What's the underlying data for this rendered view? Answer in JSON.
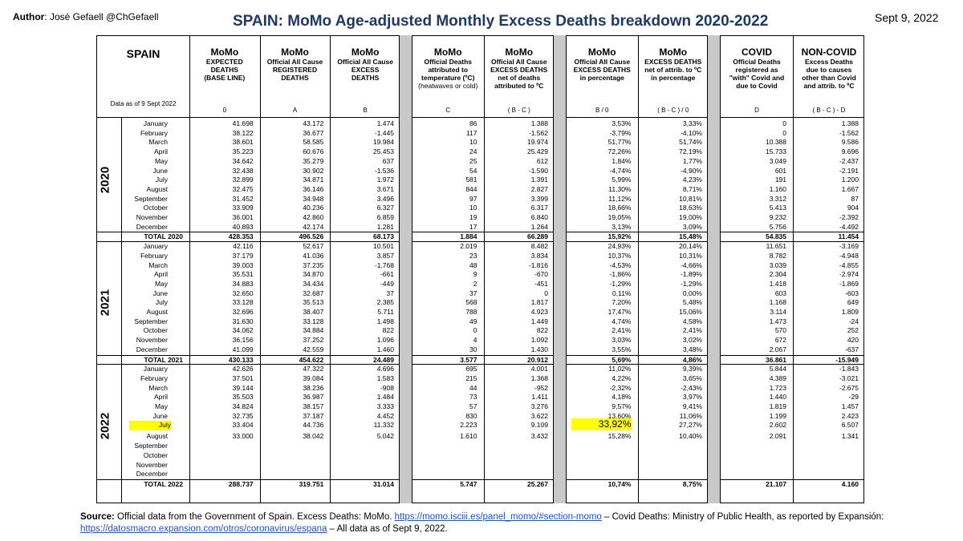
{
  "author_label": "Author",
  "author_text": ": José Gefaell   @ChGefaell",
  "title": "SPAIN: MoMo Age-adjusted Monthly Excess Deaths breakdown 2020-2022",
  "date": "Sept 9, 2022",
  "header": {
    "country": "SPAIN",
    "data_as_of": "Data as of 9 Sept 2022",
    "columns": [
      {
        "h1": "MoMo",
        "h2": [
          "EXPECTED",
          "DEATHS",
          "(BASE LINE)"
        ],
        "code": "0"
      },
      {
        "h1": "MoMo",
        "h2": [
          "Official All Cause",
          "REGISTERED",
          "DEATHS"
        ],
        "code": "A"
      },
      {
        "h1": "MoMo",
        "h2": [
          "Official All Cause",
          "EXCESS",
          "DEATHS"
        ],
        "code": "B"
      },
      {
        "h1": "MoMo",
        "h2": [
          "Official Deaths",
          "attributed to",
          "temperature (ºC)",
          "(heatwaves or cold)"
        ],
        "code": "C"
      },
      {
        "h1": "MoMo",
        "h2": [
          "Official All Cause",
          "EXCESS DEATHS",
          "net of deaths",
          "attributed to ºC"
        ],
        "code": "( B - C )"
      },
      {
        "h1": "MoMo",
        "h2": [
          "Official All Cause",
          "EXCESS DEATHS",
          "in percentage"
        ],
        "code": "B / 0"
      },
      {
        "h1": "MoMo",
        "h2": [
          "EXCESS DEATHS",
          "net of attrib. to ºC",
          "in percentage"
        ],
        "code": "( B - C ) / 0"
      },
      {
        "h1": "COVID",
        "h2": [
          "Official Deaths",
          "registered as",
          "\"with\" Covid and",
          "due to Covid"
        ],
        "code": "D"
      },
      {
        "h1": "NON-COVID",
        "h2": [
          "Excess Deaths",
          "due to causes",
          "other than Covid",
          "and attrib. to ºC"
        ],
        "code": "( B - C ) - D"
      }
    ]
  },
  "years": [
    {
      "year": "2020",
      "rows": [
        [
          "January",
          "41.698",
          "43.172",
          "1.474",
          "86",
          "1.388",
          "3,53%",
          "3,33%",
          "0",
          "1.388"
        ],
        [
          "February",
          "38.122",
          "36.677",
          "-1.445",
          "117",
          "-1.562",
          "-3,79%",
          "-4,10%",
          "0",
          "-1.562"
        ],
        [
          "March",
          "38.601",
          "58.585",
          "19.984",
          "10",
          "19.974",
          "51,77%",
          "51,74%",
          "10.388",
          "9.586"
        ],
        [
          "April",
          "35.223",
          "60.676",
          "25.453",
          "24",
          "25.429",
          "72,26%",
          "72,19%",
          "15.733",
          "9.696"
        ],
        [
          "May",
          "34.642",
          "35.279",
          "637",
          "25",
          "612",
          "1,84%",
          "1,77%",
          "3.049",
          "-2.437"
        ],
        [
          "June",
          "32.438",
          "30.902",
          "-1.536",
          "54",
          "-1.590",
          "-4,74%",
          "-4,90%",
          "601",
          "-2.191"
        ],
        [
          "July",
          "32.899",
          "34.871",
          "1.972",
          "581",
          "1.391",
          "5,99%",
          "4,23%",
          "191",
          "1.200"
        ],
        [
          "August",
          "32.475",
          "36.146",
          "3.671",
          "844",
          "2.827",
          "11,30%",
          "8,71%",
          "1.160",
          "1.667"
        ],
        [
          "September",
          "31.452",
          "34.948",
          "3.496",
          "97",
          "3.399",
          "11,12%",
          "10,81%",
          "3.312",
          "87"
        ],
        [
          "October",
          "33.909",
          "40.236",
          "6.327",
          "10",
          "6.317",
          "18,66%",
          "18,63%",
          "5.413",
          "904"
        ],
        [
          "November",
          "36.001",
          "42.860",
          "6.859",
          "19",
          "6.840",
          "19,05%",
          "19,00%",
          "9.232",
          "-2.392"
        ],
        [
          "December",
          "40.893",
          "42.174",
          "1.281",
          "17",
          "1.264",
          "3,13%",
          "3,09%",
          "5.756",
          "-4.492"
        ]
      ],
      "total": [
        "TOTAL 2020",
        "428.353",
        "496.526",
        "68.173",
        "1.884",
        "66.289",
        "15,92%",
        "15,48%",
        "54.835",
        "11.454"
      ]
    },
    {
      "year": "2021",
      "rows": [
        [
          "January",
          "42.116",
          "52.617",
          "10.501",
          "2.019",
          "8.482",
          "24,93%",
          "20,14%",
          "11.651",
          "-3.169"
        ],
        [
          "February",
          "37.179",
          "41.036",
          "3.857",
          "23",
          "3.834",
          "10,37%",
          "10,31%",
          "8.782",
          "-4.948"
        ],
        [
          "March",
          "39.003",
          "37.235",
          "-1.768",
          "48",
          "-1.816",
          "-4,53%",
          "-4,66%",
          "3.039",
          "-4.855"
        ],
        [
          "April",
          "35.531",
          "34.870",
          "-661",
          "9",
          "-670",
          "-1,86%",
          "-1,89%",
          "2.304",
          "-2.974"
        ],
        [
          "May",
          "34.883",
          "34.434",
          "-449",
          "2",
          "-451",
          "-1,29%",
          "-1,29%",
          "1.418",
          "-1.869"
        ],
        [
          "June",
          "32.650",
          "32.687",
          "37",
          "37",
          "0",
          "0,11%",
          "0,00%",
          "603",
          "-603"
        ],
        [
          "July",
          "33.128",
          "35.513",
          "2.385",
          "568",
          "1.817",
          "7,20%",
          "5,48%",
          "1.168",
          "649"
        ],
        [
          "August",
          "32.696",
          "38.407",
          "5.711",
          "788",
          "4.923",
          "17,47%",
          "15,06%",
          "3.114",
          "1.809"
        ],
        [
          "September",
          "31.630",
          "33.128",
          "1.498",
          "49",
          "1.449",
          "4,74%",
          "4,58%",
          "1.473",
          "-24"
        ],
        [
          "October",
          "34.062",
          "34.884",
          "822",
          "0",
          "822",
          "2,41%",
          "2,41%",
          "570",
          "252"
        ],
        [
          "November",
          "36.156",
          "37.252",
          "1.096",
          "4",
          "1.092",
          "3,03%",
          "3,02%",
          "672",
          "420"
        ],
        [
          "December",
          "41.099",
          "42.559",
          "1.460",
          "30",
          "1.430",
          "3,55%",
          "3,48%",
          "2.067",
          "-637"
        ]
      ],
      "total": [
        "TOTAL 2021",
        "430.133",
        "454.622",
        "24.489",
        "3.577",
        "20.912",
        "5,69%",
        "4,86%",
        "36.861",
        "-15.949"
      ]
    },
    {
      "year": "2022",
      "rows": [
        [
          "January",
          "42.626",
          "47.322",
          "4.696",
          "695",
          "4.001",
          "11,02%",
          "9,39%",
          "5.844",
          "-1.843"
        ],
        [
          "February",
          "37.501",
          "39.084",
          "1.583",
          "215",
          "1.368",
          "4,22%",
          "3,65%",
          "4.389",
          "-3.021"
        ],
        [
          "March",
          "39.144",
          "38.236",
          "-908",
          "44",
          "-952",
          "-2,32%",
          "-2,43%",
          "1.723",
          "-2.675"
        ],
        [
          "April",
          "35.503",
          "36.987",
          "1.484",
          "73",
          "1.411",
          "4,18%",
          "3,97%",
          "1.440",
          "-29"
        ],
        [
          "May",
          "34.824",
          "38.157",
          "3.333",
          "57",
          "3.276",
          "9,57%",
          "9,41%",
          "1.819",
          "1.457"
        ],
        [
          "June",
          "32.735",
          "37.187",
          "4.452",
          "830",
          "3.622",
          "13,60%",
          "11,06%",
          "1.199",
          "2.423"
        ],
        [
          "July",
          "33.404",
          "44.736",
          "11.332",
          "2.223",
          "9.109",
          "33,92%",
          "27,27%",
          "2.602",
          "6.507"
        ],
        [
          "August",
          "33.000",
          "38.042",
          "5.042",
          "1.610",
          "3.432",
          "15,28%",
          "10,40%",
          "2.091",
          "1.341"
        ],
        [
          "September",
          "",
          "",
          "",
          "",
          "",
          "",
          "",
          "",
          ""
        ],
        [
          "October",
          "",
          "",
          "",
          "",
          "",
          "",
          "",
          "",
          ""
        ],
        [
          "November",
          "",
          "",
          "",
          "",
          "",
          "",
          "",
          "",
          ""
        ],
        [
          "December",
          "",
          "",
          "",
          "",
          "",
          "",
          "",
          "",
          ""
        ]
      ],
      "total": [
        "TOTAL 2022",
        "288.737",
        "319.751",
        "31.014",
        "5.747",
        "25.267",
        "10,74%",
        "8,75%",
        "21.107",
        "4.160"
      ]
    }
  ],
  "highlight_color": "#ffff00",
  "source": {
    "label": "Source:",
    "text1": " Official data from the Government of Spain. Excess Deaths: MoMo. ",
    "link1": "https://momo.isciii.es/panel_momo/#section-momo",
    "text2": "  – Covid Deaths: Ministry of Public Health, as reported by Expansión:",
    "link2": "https://datosmacro.expansion.com/otros/coronavirus/espana",
    "text3": "  – All data as of Sept 9, 2022."
  }
}
